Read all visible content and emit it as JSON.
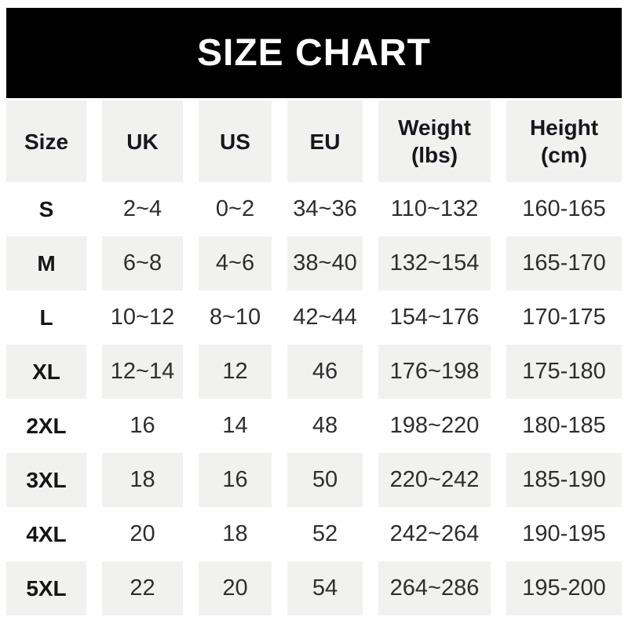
{
  "title": "SIZE CHART",
  "colors": {
    "banner_bg": "#000000",
    "banner_text": "#ffffff",
    "row_shade": "#f1f1f0",
    "text": "#2e2e2e"
  },
  "ui": {
    "header_lines": [
      [
        "Size",
        ""
      ],
      [
        "UK",
        ""
      ],
      [
        "US",
        ""
      ],
      [
        "EU",
        ""
      ],
      [
        "Weight",
        "(lbs)"
      ],
      [
        "Height",
        "(cm)"
      ]
    ]
  },
  "chart_data": {
    "type": "table",
    "title": "SIZE CHART",
    "columns": [
      "Size",
      "UK",
      "US",
      "EU",
      "Weight (lbs)",
      "Height (cm)"
    ],
    "rows": [
      [
        "S",
        "2~4",
        "0~2",
        "34~36",
        "110~132",
        "160-165"
      ],
      [
        "M",
        "6~8",
        "4~6",
        "38~40",
        "132~154",
        "165-170"
      ],
      [
        "L",
        "10~12",
        "8~10",
        "42~44",
        "154~176",
        "170-175"
      ],
      [
        "XL",
        "12~14",
        "12",
        "46",
        "176~198",
        "175-180"
      ],
      [
        "2XL",
        "16",
        "14",
        "48",
        "198~220",
        "180-185"
      ],
      [
        "3XL",
        "18",
        "16",
        "50",
        "220~242",
        "185-190"
      ],
      [
        "4XL",
        "20",
        "18",
        "52",
        "242~264",
        "190-195"
      ],
      [
        "5XL",
        "22",
        "20",
        "54",
        "264~286",
        "195-200"
      ]
    ],
    "layout": {
      "shaded_data_rows": [
        1,
        3,
        5,
        7
      ],
      "header_shaded": true,
      "grid": "none",
      "range_separator_most_columns": "~",
      "range_separator_height_column": "-"
    }
  }
}
